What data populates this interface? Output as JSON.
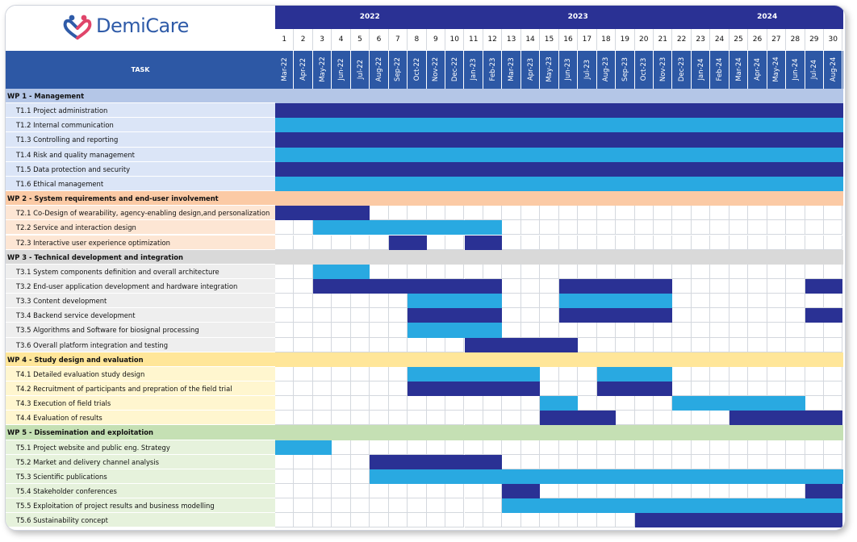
{
  "header": {
    "logo_text": "DemiCare",
    "task_column_label": "TASK",
    "years": [
      {
        "label": "2022",
        "first_month_index": 0,
        "span": 10
      },
      {
        "label": "2023",
        "first_month_index": 10,
        "span": 12
      },
      {
        "label": "2024",
        "first_month_index": 22,
        "span": 8
      }
    ]
  },
  "colors": {
    "header_navy": "#2a3194",
    "header_blue": "#2d58a5",
    "dark_bar": "#2a3194",
    "light_bar": "#29a9e1",
    "grid_line": "#d4d8de"
  },
  "chart_data": {
    "type": "gantt",
    "title": "",
    "months": [
      "Mar-22",
      "Apr-22",
      "May-22",
      "Jun-22",
      "Jul-22",
      "Aug-22",
      "Sep-22",
      "Oct-22",
      "Nov-22",
      "Dec-22",
      "Jan-23",
      "Feb-23",
      "Mar-23",
      "Apr-23",
      "May-23",
      "Jun-23",
      "Jul-23",
      "Aug-23",
      "Sep-23",
      "Oct-23",
      "Nov-23",
      "Dec-23",
      "Jan-24",
      "Feb-24",
      "Mar-24",
      "Apr-24",
      "May-24",
      "Jun-24",
      "Jul-24",
      "Aug-24"
    ],
    "month_numbers": [
      "1",
      "2",
      "3",
      "4",
      "5",
      "6",
      "7",
      "8",
      "9",
      "10",
      "11",
      "12",
      "13",
      "14",
      "15",
      "16",
      "17",
      "18",
      "19",
      "20",
      "21",
      "22",
      "23",
      "24",
      "25",
      "26",
      "27",
      "28",
      "29",
      "30"
    ],
    "work_packages": [
      {
        "label": "WP 1 - Management",
        "color": "#b4c6e7",
        "task_bg": "#dbe5f7",
        "tasks": [
          {
            "label": "T1.1 Project administration",
            "bars": [
              {
                "start": 1,
                "end": 30,
                "style": "dark"
              }
            ]
          },
          {
            "label": "T1.2 Internal communication",
            "bars": [
              {
                "start": 1,
                "end": 30,
                "style": "light"
              }
            ]
          },
          {
            "label": "T1.3 Controlling and reporting",
            "bars": [
              {
                "start": 1,
                "end": 30,
                "style": "dark"
              }
            ]
          },
          {
            "label": "T1.4 Risk and quality management",
            "bars": [
              {
                "start": 1,
                "end": 30,
                "style": "light"
              }
            ]
          },
          {
            "label": "T1.5 Data protection and security",
            "bars": [
              {
                "start": 1,
                "end": 30,
                "style": "dark"
              }
            ]
          },
          {
            "label": "T1.6 Ethical management",
            "bars": [
              {
                "start": 1,
                "end": 30,
                "style": "light"
              }
            ]
          }
        ]
      },
      {
        "label": "WP 2 - System requirements and end-user involvement",
        "color": "#fbcaa5",
        "task_bg": "#fde6d4",
        "tasks": [
          {
            "label": "T2.1 Co-Design of wearability, agency-enabling design,and personalization",
            "bars": [
              {
                "start": 1,
                "end": 5,
                "style": "dark"
              }
            ]
          },
          {
            "label": "T2.2 Service and interaction design",
            "bars": [
              {
                "start": 3,
                "end": 12,
                "style": "light"
              }
            ]
          },
          {
            "label": "T2.3 Interactive user experience optimization",
            "bars": [
              {
                "start": 7,
                "end": 8,
                "style": "dark"
              },
              {
                "start": 11,
                "end": 12,
                "style": "dark"
              }
            ]
          }
        ]
      },
      {
        "label": "WP 3 - Technical development and integration",
        "color": "#d9d9d9",
        "task_bg": "#eeeeee",
        "tasks": [
          {
            "label": "T3.1 System components definition and overall architecture",
            "bars": [
              {
                "start": 3,
                "end": 5,
                "style": "light"
              }
            ]
          },
          {
            "label": "T3.2 End-user application development and hardware integration",
            "bars": [
              {
                "start": 3,
                "end": 12,
                "style": "dark"
              },
              {
                "start": 16,
                "end": 21,
                "style": "dark"
              },
              {
                "start": 29,
                "end": 30,
                "style": "dark"
              }
            ]
          },
          {
            "label": "T3.3 Content development",
            "bars": [
              {
                "start": 8,
                "end": 12,
                "style": "light"
              },
              {
                "start": 16,
                "end": 21,
                "style": "light"
              }
            ]
          },
          {
            "label": "T3.4 Backend service development",
            "bars": [
              {
                "start": 8,
                "end": 12,
                "style": "dark"
              },
              {
                "start": 16,
                "end": 21,
                "style": "dark"
              },
              {
                "start": 29,
                "end": 30,
                "style": "dark"
              }
            ]
          },
          {
            "label": "T3.5 Algorithms and Software for biosignal processing",
            "bars": [
              {
                "start": 8,
                "end": 12,
                "style": "light"
              }
            ]
          },
          {
            "label": "T3.6 Overall platform integration and testing",
            "bars": [
              {
                "start": 11,
                "end": 16,
                "style": "dark"
              }
            ]
          }
        ]
      },
      {
        "label": "WP 4 - Study design and evaluation",
        "color": "#ffe699",
        "task_bg": "#fff6cf",
        "tasks": [
          {
            "label": "T4.1 Detailed evaluation study design",
            "bars": [
              {
                "start": 8,
                "end": 14,
                "style": "light"
              },
              {
                "start": 18,
                "end": 21,
                "style": "light"
              }
            ]
          },
          {
            "label": "T4.2 Recruitment of participants and prepration of the field trial",
            "bars": [
              {
                "start": 8,
                "end": 14,
                "style": "dark"
              },
              {
                "start": 18,
                "end": 21,
                "style": "dark"
              }
            ]
          },
          {
            "label": "T4.3 Execution of field trials",
            "bars": [
              {
                "start": 15,
                "end": 16,
                "style": "light"
              },
              {
                "start": 22,
                "end": 28,
                "style": "light"
              }
            ]
          },
          {
            "label": "T4.4 Evaluation of results",
            "bars": [
              {
                "start": 15,
                "end": 18,
                "style": "dark"
              },
              {
                "start": 25,
                "end": 30,
                "style": "dark"
              }
            ]
          }
        ]
      },
      {
        "label": "WP 5 - Dissemination and exploitation",
        "color": "#c5e0b4",
        "task_bg": "#e6f2dc",
        "tasks": [
          {
            "label": "T5.1 Project website and public eng. Strategy",
            "bars": [
              {
                "start": 1,
                "end": 3,
                "style": "light"
              }
            ]
          },
          {
            "label": "T5.2 Market and delivery channel analysis",
            "bars": [
              {
                "start": 6,
                "end": 12,
                "style": "dark"
              }
            ]
          },
          {
            "label": "T5.3 Scientific publications",
            "bars": [
              {
                "start": 6,
                "end": 30,
                "style": "light"
              }
            ]
          },
          {
            "label": "T5.4 Stakeholder conferences",
            "bars": [
              {
                "start": 13,
                "end": 14,
                "style": "dark"
              },
              {
                "start": 29,
                "end": 30,
                "style": "dark"
              }
            ]
          },
          {
            "label": "T5.5 Exploitation of project results and business modelling",
            "bars": [
              {
                "start": 13,
                "end": 30,
                "style": "light"
              }
            ]
          },
          {
            "label": "T5.6 Sustainability concept",
            "bars": [
              {
                "start": 20,
                "end": 30,
                "style": "dark"
              }
            ]
          }
        ]
      }
    ]
  }
}
